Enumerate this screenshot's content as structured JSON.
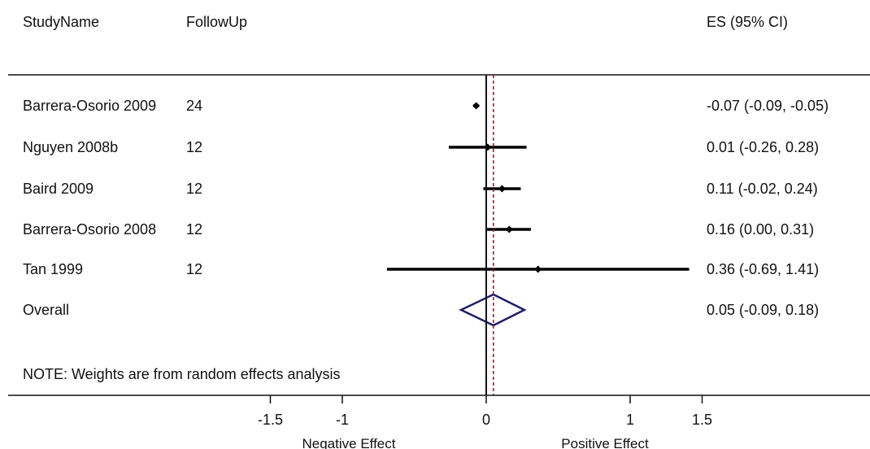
{
  "headers": {
    "study": "StudyName",
    "followup": "FollowUp",
    "es": "ES (95% CI)"
  },
  "note": "NOTE: Weights are from random effects analysis",
  "axis": {
    "ticks": [
      "-1.5",
      "-1",
      "0",
      "1",
      "1.5"
    ],
    "label_left": "Negative Effect",
    "label_right": "Positive Effect"
  },
  "colors": {
    "marker": "#000000",
    "overall_diamond": "#1f1f6e",
    "overall_line": "#8b1a1a"
  },
  "chart_data": {
    "type": "forest",
    "xlim": [
      -1.5,
      1.5
    ],
    "null_line": 0,
    "studies": [
      {
        "name": "Barrera-Osorio 2009",
        "followup": "24",
        "es": -0.07,
        "lo": -0.09,
        "hi": -0.05,
        "label": "-0.07 (-0.09, -0.05)"
      },
      {
        "name": "Nguyen 2008b",
        "followup": "12",
        "es": 0.01,
        "lo": -0.26,
        "hi": 0.28,
        "label": "0.01 (-0.26, 0.28)"
      },
      {
        "name": "Baird 2009",
        "followup": "12",
        "es": 0.11,
        "lo": -0.02,
        "hi": 0.24,
        "label": "0.11 (-0.02, 0.24)"
      },
      {
        "name": "Barrera-Osorio 2008",
        "followup": "12",
        "es": 0.16,
        "lo": 0.0,
        "hi": 0.31,
        "label": "0.16 (0.00, 0.31)"
      },
      {
        "name": "Tan 1999",
        "followup": "12",
        "es": 0.36,
        "lo": -0.69,
        "hi": 1.41,
        "label": "0.36 (-0.69, 1.41)"
      }
    ],
    "overall": {
      "name": "Overall",
      "es": 0.05,
      "lo": -0.09,
      "hi": 0.18,
      "label": "0.05 (-0.09, 0.18)"
    }
  }
}
